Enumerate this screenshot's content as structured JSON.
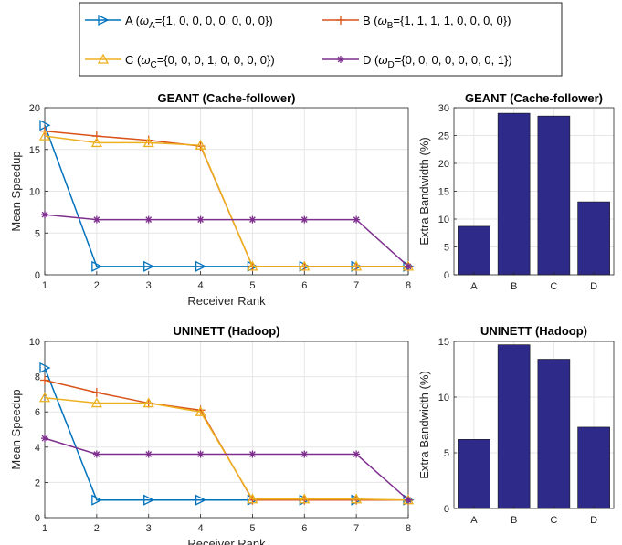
{
  "legend": {
    "entries": [
      {
        "key": "A",
        "prefix": "A (",
        "omega_base": "ω",
        "omega_sub": "A",
        "vector": "={1, 0, 0, 0, 0, 0, 0, 0})",
        "color": "#0072BD",
        "marker": "triangle-right"
      },
      {
        "key": "B",
        "prefix": "B (",
        "omega_base": "ω",
        "omega_sub": "B",
        "vector": "={1, 1, 1, 1, 0, 0, 0, 0})",
        "color": "#D95319",
        "marker": "plus"
      },
      {
        "key": "C",
        "prefix": "C (",
        "omega_base": "ω",
        "omega_sub": "C",
        "vector": "={0, 0, 0, 1, 0, 0, 0, 0})",
        "color": "#EDB120",
        "marker": "triangle-up"
      },
      {
        "key": "D",
        "prefix": "D (",
        "omega_base": "ω",
        "omega_sub": "D",
        "vector": "={0, 0, 0, 0, 0, 0, 0, 1})",
        "color": "#7E2F8E",
        "marker": "asterisk"
      }
    ]
  },
  "chart_data": [
    {
      "type": "line",
      "title": "GEANT (Cache-follower)",
      "xlabel": "Receiver Rank",
      "ylabel": "Mean Speedup",
      "x": [
        1,
        2,
        3,
        4,
        5,
        6,
        7,
        8
      ],
      "xlim": [
        1,
        8
      ],
      "ylim": [
        0,
        20
      ],
      "yticks": [
        0,
        5,
        10,
        15,
        20
      ],
      "grid": true,
      "series": [
        {
          "name": "A",
          "values": [
            17.9,
            1,
            1,
            1,
            1,
            1,
            1,
            1
          ]
        },
        {
          "name": "B",
          "values": [
            17.2,
            16.6,
            16.1,
            15.4,
            1,
            1,
            1,
            1
          ]
        },
        {
          "name": "C",
          "values": [
            16.6,
            15.8,
            15.8,
            15.5,
            1,
            1,
            1,
            1
          ]
        },
        {
          "name": "D",
          "values": [
            7.2,
            6.6,
            6.6,
            6.6,
            6.6,
            6.6,
            6.6,
            1
          ]
        }
      ]
    },
    {
      "type": "bar",
      "title": "GEANT (Cache-follower)",
      "xlabel": "",
      "ylabel": "Extra Bandwidth (%)",
      "categories": [
        "A",
        "B",
        "C",
        "D"
      ],
      "values": [
        8.7,
        29.0,
        28.5,
        13.1
      ],
      "ylim": [
        0,
        30
      ],
      "yticks": [
        0,
        5,
        10,
        15,
        20,
        25,
        30
      ],
      "grid": true,
      "color": "#2E2A8A"
    },
    {
      "type": "line",
      "title": "UNINETT (Hadoop)",
      "xlabel": "Receiver Rank",
      "ylabel": "Mean Speedup",
      "x": [
        1,
        2,
        3,
        4,
        5,
        6,
        7,
        8
      ],
      "xlim": [
        1,
        8
      ],
      "ylim": [
        0,
        10
      ],
      "yticks": [
        0,
        2,
        4,
        6,
        8,
        10
      ],
      "grid": true,
      "series": [
        {
          "name": "A",
          "values": [
            8.5,
            1,
            1,
            1,
            1,
            1,
            1,
            1
          ]
        },
        {
          "name": "B",
          "values": [
            7.8,
            7.1,
            6.5,
            6.1,
            1,
            1,
            1,
            1
          ]
        },
        {
          "name": "C",
          "values": [
            6.8,
            6.5,
            6.5,
            6.0,
            1.05,
            1.05,
            1.05,
            1
          ]
        },
        {
          "name": "D",
          "values": [
            4.5,
            3.6,
            3.6,
            3.6,
            3.6,
            3.6,
            3.6,
            1
          ]
        }
      ]
    },
    {
      "type": "bar",
      "title": "UNINETT (Hadoop)",
      "xlabel": "",
      "ylabel": "Extra Bandwidth (%)",
      "categories": [
        "A",
        "B",
        "C",
        "D"
      ],
      "values": [
        6.2,
        14.7,
        13.4,
        7.3
      ],
      "ylim": [
        0,
        15
      ],
      "yticks": [
        0,
        5,
        10,
        15
      ],
      "grid": true,
      "color": "#2E2A8A"
    }
  ]
}
